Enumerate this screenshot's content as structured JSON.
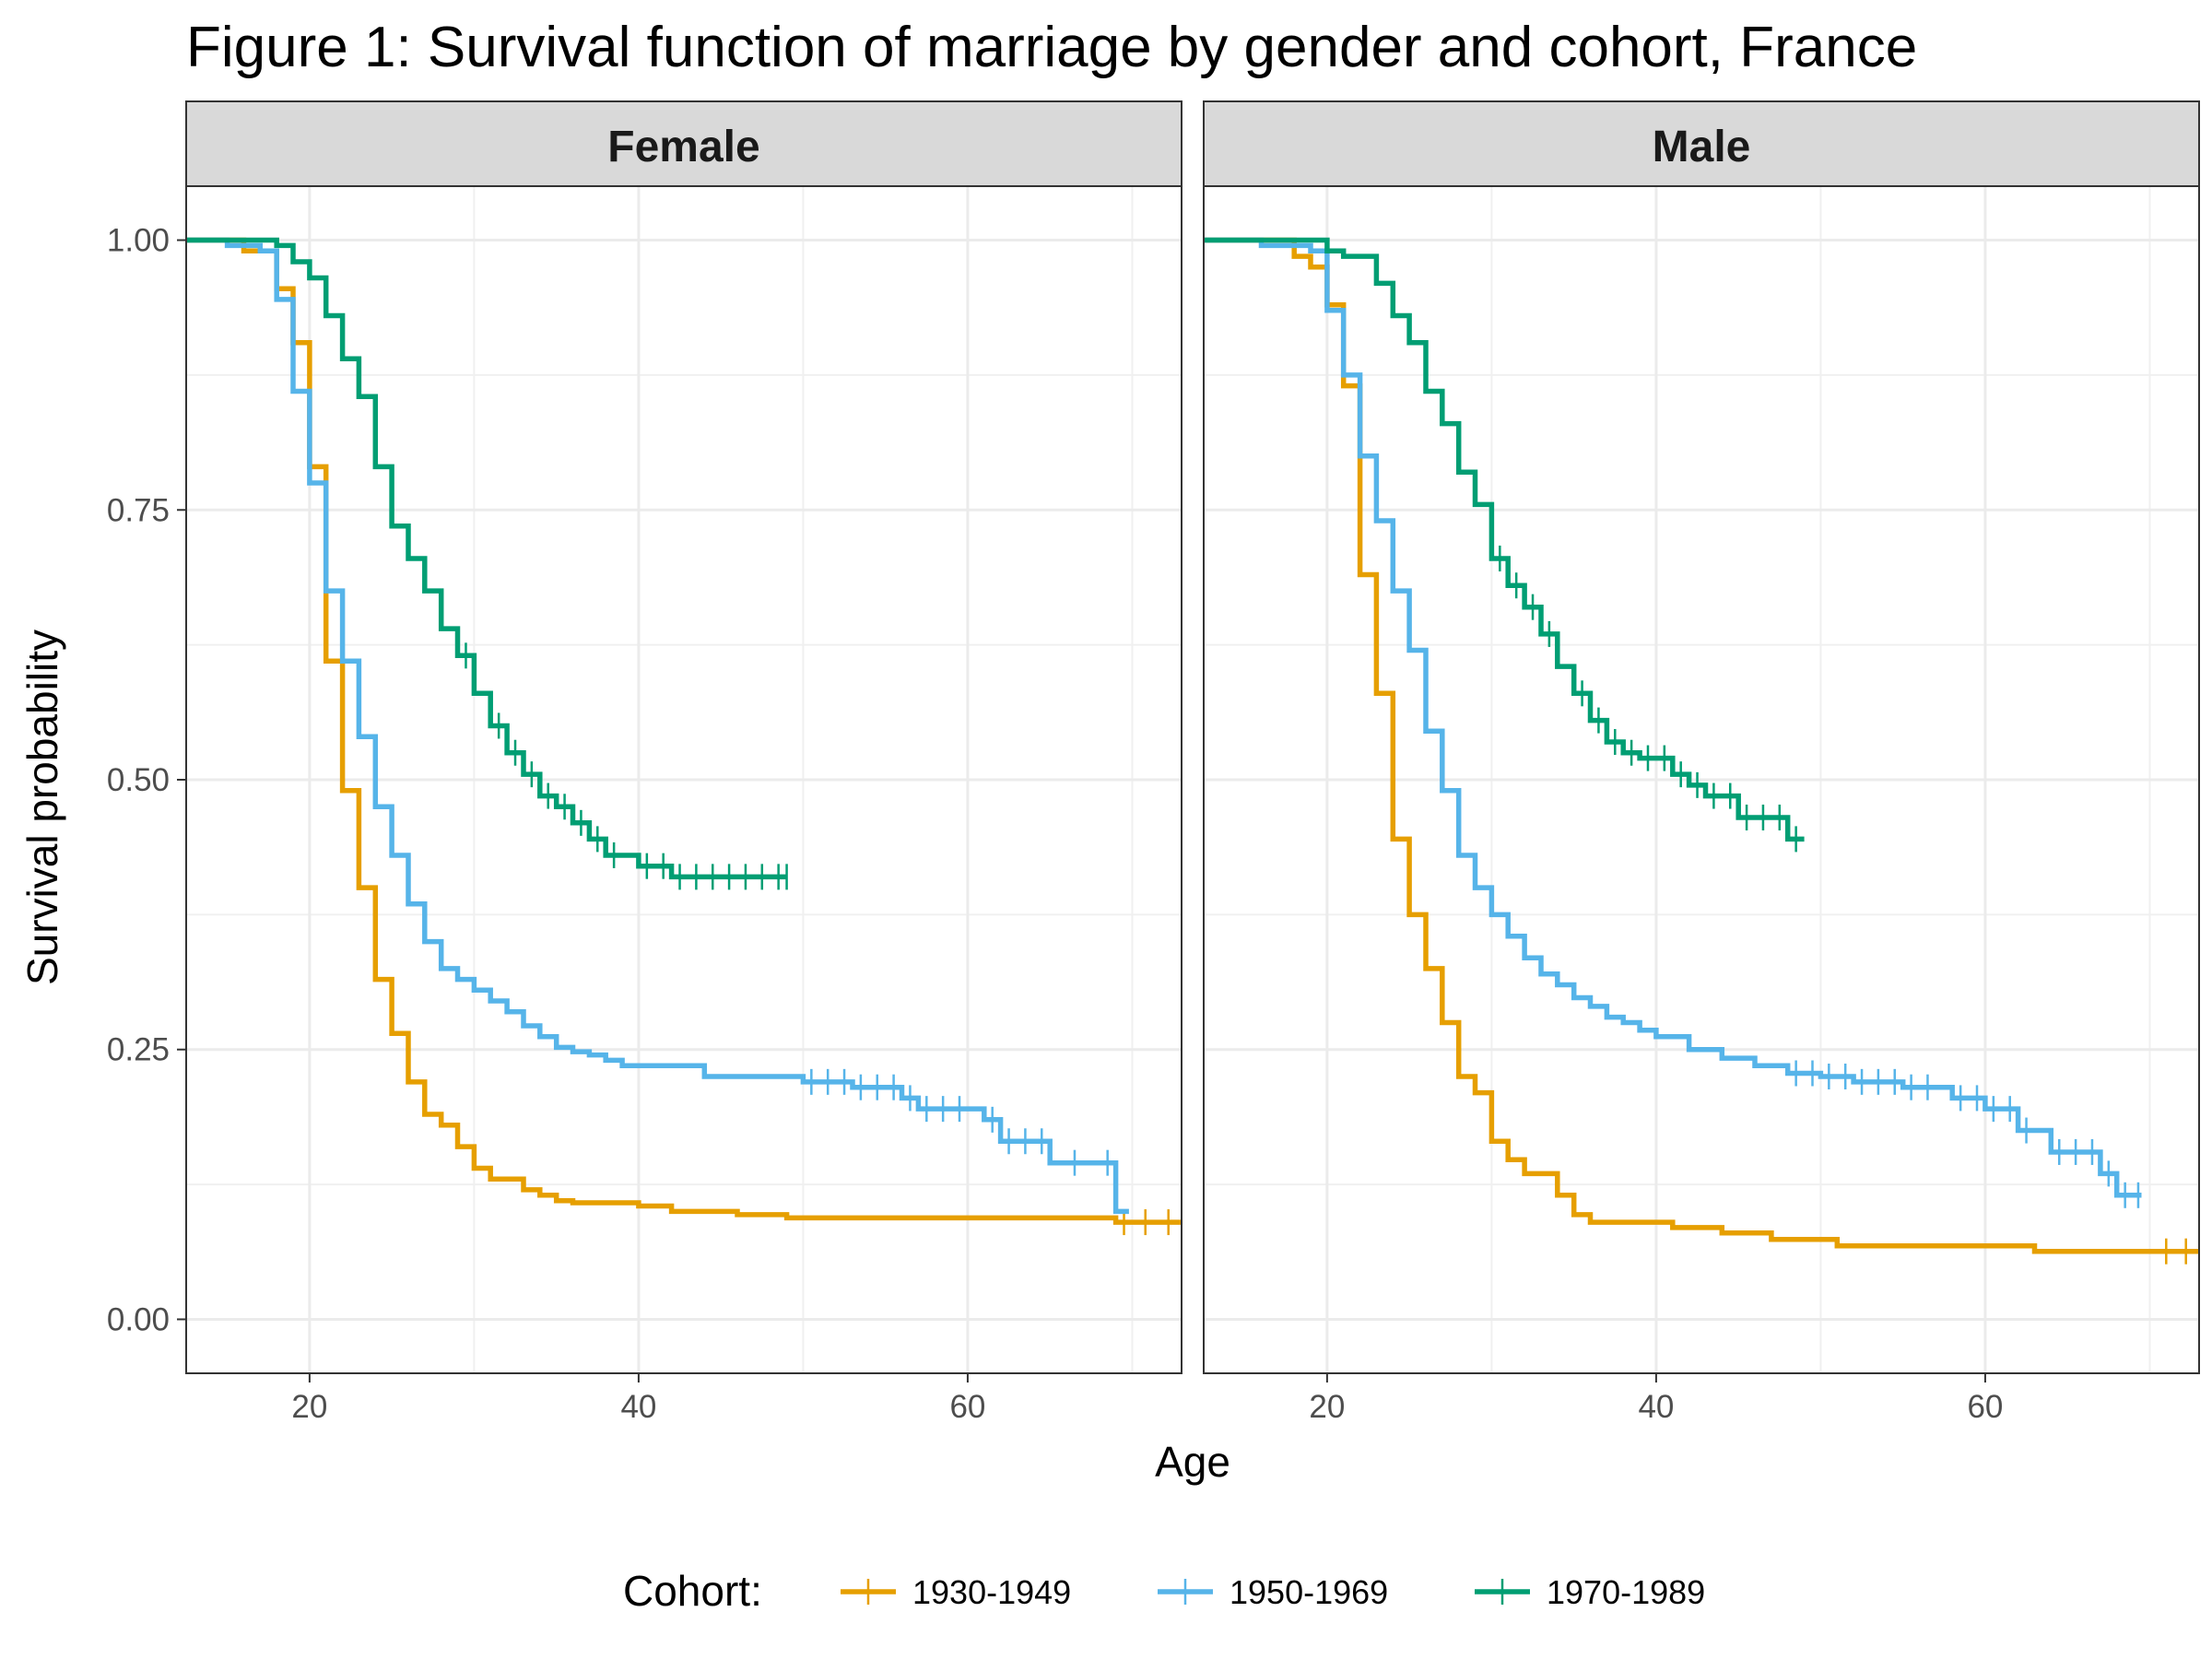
{
  "chart_data": {
    "type": "line",
    "subtype": "step",
    "title": "Figure 1: Survival function of marriage by gender and cohort, France",
    "xlabel": "Age",
    "ylabel": "Survival probability",
    "xlim": [
      12.5,
      73
    ],
    "ylim": [
      -0.05,
      1.05
    ],
    "x_ticks": [
      20,
      40,
      60
    ],
    "y_ticks": [
      0,
      0.25,
      0.5,
      0.75,
      1
    ],
    "y_tick_labels": [
      "0.00",
      "0.25",
      "0.50",
      "0.75",
      "1.00"
    ],
    "grid": true,
    "legend": {
      "position": "bottom",
      "title": "Cohort:",
      "entries": [
        "1930-1949",
        "1950-1969",
        "1970-1989"
      ]
    },
    "colors": {
      "1930-1949": "#E69F00",
      "1950-1969": "#56B4E9",
      "1970-1989": "#009E73"
    },
    "panels": [
      {
        "label": "Female",
        "series": [
          {
            "name": "1930-1949",
            "x": [
              12.5,
              16,
              18,
              19,
              20,
              21,
              22,
              23,
              24,
              25,
              26,
              27,
              28,
              29,
              30,
              31,
              33,
              34,
              35,
              36,
              40,
              42,
              46,
              49,
              69,
              73
            ],
            "y": [
              1.0,
              0.99,
              0.955,
              0.905,
              0.79,
              0.61,
              0.49,
              0.4,
              0.315,
              0.265,
              0.22,
              0.19,
              0.18,
              0.16,
              0.14,
              0.13,
              0.12,
              0.115,
              0.11,
              0.108,
              0.105,
              0.1,
              0.097,
              0.094,
              0.09,
              0.09
            ],
            "censor_x": [
              69.5,
              70.8,
              72.2
            ]
          },
          {
            "name": "1950-1969",
            "x": [
              12.5,
              15,
              17,
              18,
              19,
              20,
              21,
              22,
              23,
              24,
              25,
              26,
              27,
              28,
              29,
              30,
              31,
              32,
              33,
              34,
              35,
              36,
              37,
              38,
              39,
              44,
              50,
              53,
              56,
              57,
              61,
              62,
              65,
              69,
              69.8
            ],
            "y": [
              1.0,
              0.995,
              0.99,
              0.945,
              0.86,
              0.775,
              0.675,
              0.61,
              0.54,
              0.475,
              0.43,
              0.385,
              0.35,
              0.325,
              0.315,
              0.305,
              0.295,
              0.285,
              0.272,
              0.262,
              0.252,
              0.248,
              0.245,
              0.24,
              0.235,
              0.225,
              0.22,
              0.215,
              0.205,
              0.195,
              0.185,
              0.165,
              0.145,
              0.1,
              0.1
            ],
            "censor_x": [
              50.5,
              51.5,
              52.5,
              53.5,
              54.5,
              55.5,
              56.5,
              57.5,
              58.5,
              59.5,
              61.5,
              62.5,
              63.5,
              64.5,
              66.5,
              68.5
            ]
          },
          {
            "name": "1970-1989",
            "x": [
              12.5,
              18,
              19,
              20,
              21,
              22,
              23,
              24,
              25,
              26,
              27,
              28,
              29,
              30,
              31,
              32,
              33,
              34,
              35,
              36,
              37,
              38,
              40,
              42,
              43,
              49
            ],
            "y": [
              1.0,
              0.995,
              0.98,
              0.965,
              0.93,
              0.89,
              0.855,
              0.79,
              0.735,
              0.705,
              0.675,
              0.64,
              0.615,
              0.58,
              0.55,
              0.525,
              0.505,
              0.485,
              0.475,
              0.46,
              0.445,
              0.43,
              0.42,
              0.41,
              0.41,
              0.41
            ],
            "censor_x": [
              29.5,
              31.5,
              32.5,
              33.5,
              34.5,
              35.5,
              36.5,
              37.5,
              38.5,
              40.5,
              41.5,
              42.5,
              43.5,
              44.5,
              45.5,
              46.5,
              47.5,
              48.5,
              49.0
            ]
          }
        ]
      },
      {
        "label": "Male",
        "series": [
          {
            "name": "1930-1949",
            "x": [
              12.5,
              18,
              19,
              20,
              21,
              22,
              23,
              24,
              25,
              26,
              27,
              28,
              29,
              30,
              31,
              32,
              34,
              35,
              36,
              41,
              44,
              47,
              51,
              63,
              73
            ],
            "y": [
              1.0,
              0.985,
              0.975,
              0.94,
              0.865,
              0.69,
              0.58,
              0.445,
              0.375,
              0.325,
              0.275,
              0.225,
              0.21,
              0.165,
              0.148,
              0.135,
              0.115,
              0.097,
              0.09,
              0.085,
              0.08,
              0.074,
              0.068,
              0.063,
              0.063
            ],
            "censor_x": [
              71.0,
              72.2
            ]
          },
          {
            "name": "1950-1969",
            "x": [
              12.5,
              16,
              19,
              20,
              21,
              22,
              23,
              24,
              25,
              26,
              27,
              28,
              29,
              30,
              31,
              32,
              33,
              34,
              35,
              36,
              37,
              38,
              39,
              40,
              42,
              44,
              46,
              48,
              50,
              52,
              55,
              58,
              60,
              62,
              64,
              67,
              68,
              69.5
            ],
            "y": [
              1.0,
              0.995,
              0.99,
              0.935,
              0.875,
              0.8,
              0.74,
              0.675,
              0.62,
              0.545,
              0.49,
              0.43,
              0.4,
              0.375,
              0.355,
              0.335,
              0.32,
              0.31,
              0.298,
              0.29,
              0.28,
              0.275,
              0.268,
              0.262,
              0.25,
              0.242,
              0.235,
              0.228,
              0.225,
              0.22,
              0.215,
              0.205,
              0.195,
              0.175,
              0.155,
              0.135,
              0.115,
              0.115
            ],
            "censor_x": [
              48.5,
              49.5,
              50.5,
              51.5,
              52.5,
              53.5,
              54.5,
              55.5,
              56.5,
              58.5,
              59.5,
              60.5,
              61.5,
              62.5,
              64.5,
              65.5,
              66.5,
              67.5,
              68.5,
              69.3
            ]
          },
          {
            "name": "1970-1989",
            "x": [
              12.5,
              20,
              21,
              23,
              24,
              25,
              26,
              27,
              28,
              29,
              30,
              31,
              32,
              33,
              34,
              35,
              36,
              37,
              38,
              39,
              41,
              42,
              43,
              45,
              48,
              49
            ],
            "y": [
              1.0,
              0.99,
              0.985,
              0.96,
              0.93,
              0.905,
              0.86,
              0.83,
              0.785,
              0.755,
              0.705,
              0.68,
              0.66,
              0.635,
              0.605,
              0.58,
              0.555,
              0.535,
              0.525,
              0.52,
              0.505,
              0.495,
              0.485,
              0.465,
              0.445,
              0.445
            ],
            "censor_x": [
              30.5,
              31.5,
              32.5,
              33.5,
              35.5,
              36.5,
              37.5,
              38.5,
              39.5,
              40.5,
              41.5,
              42.5,
              43.5,
              44.5,
              45.5,
              46.5,
              47.5,
              48.5
            ]
          }
        ]
      }
    ]
  }
}
